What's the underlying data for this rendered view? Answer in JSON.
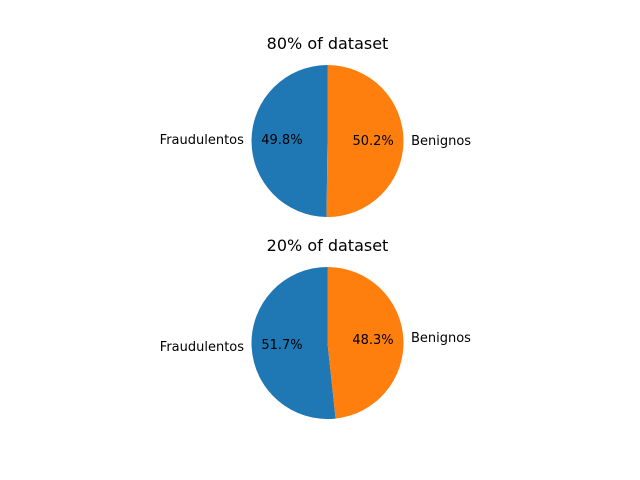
{
  "chart_data": [
    {
      "type": "pie",
      "title": "80% of dataset",
      "start_angle_deg": 90,
      "direction": "counterclockwise",
      "slices": [
        {
          "label": "Fraudulentos",
          "value": 49.8,
          "pct_label": "49.8%",
          "color": "#1f77b4"
        },
        {
          "label": "Benignos",
          "value": 50.2,
          "pct_label": "50.2%",
          "color": "#ff7f0e"
        }
      ]
    },
    {
      "type": "pie",
      "title": "20% of dataset",
      "start_angle_deg": 90,
      "direction": "counterclockwise",
      "slices": [
        {
          "label": "Fraudulentos",
          "value": 51.7,
          "pct_label": "51.7%",
          "color": "#1f77b4"
        },
        {
          "label": "Benignos",
          "value": 48.3,
          "pct_label": "48.3%",
          "color": "#ff7f0e"
        }
      ]
    }
  ]
}
